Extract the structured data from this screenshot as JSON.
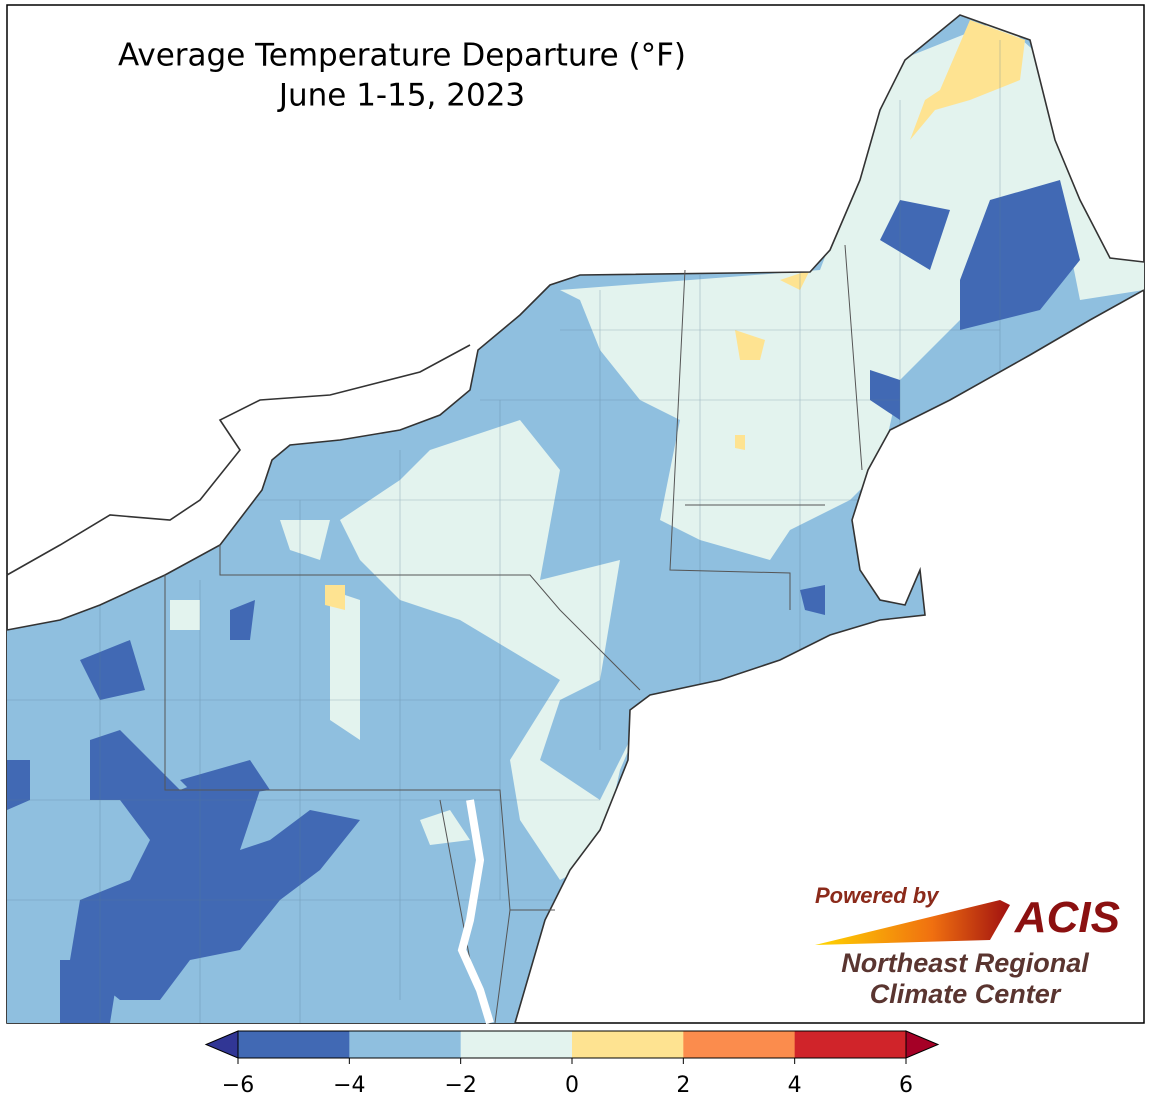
{
  "title": "Average Temperature Departure (°F)",
  "subtitle": "June 1-15, 2023",
  "colorbar": {
    "ticks": [
      {
        "value": -6,
        "label": "−6"
      },
      {
        "value": -4,
        "label": "−4"
      },
      {
        "value": -2,
        "label": "−2"
      },
      0,
      2,
      4,
      6
    ],
    "colors": [
      "#4169b4",
      "#8fbfdf",
      "#e3f3ee",
      "#fee391",
      "#fb8c4d",
      "#d0242a"
    ],
    "under_color": "#313695",
    "over_color": "#a50026"
  },
  "logo": {
    "powered": "Powered by",
    "name": "ACIS",
    "line1": "Northeast Regional",
    "line2": "Climate Center"
  }
}
